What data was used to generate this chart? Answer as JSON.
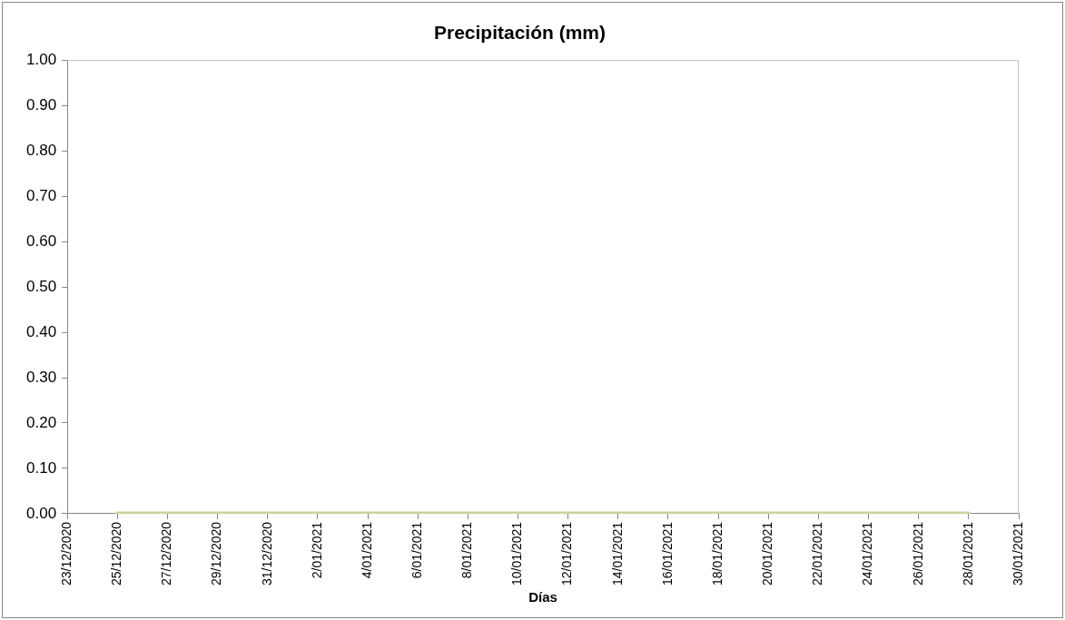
{
  "chart_data": {
    "type": "line",
    "title": "Precipitación (mm)",
    "xlabel": "Días",
    "legend": false,
    "marker": "none",
    "x": [
      "2020-12-25",
      "2020-12-26",
      "2020-12-27",
      "2020-12-28",
      "2020-12-29",
      "2020-12-30",
      "2020-12-31",
      "2021-01-01",
      "2021-01-02",
      "2021-01-03",
      "2021-01-04",
      "2021-01-05",
      "2021-01-06",
      "2021-01-07",
      "2021-01-08",
      "2021-01-09",
      "2021-01-10",
      "2021-01-11",
      "2021-01-12",
      "2021-01-13",
      "2021-01-14",
      "2021-01-15",
      "2021-01-16",
      "2021-01-17",
      "2021-01-18",
      "2021-01-19",
      "2021-01-20",
      "2021-01-21",
      "2021-01-22",
      "2021-01-23",
      "2021-01-24",
      "2021-01-25",
      "2021-01-26",
      "2021-01-27",
      "2021-01-28"
    ],
    "series": [
      {
        "color": "#c3d69b",
        "values": [
          0,
          0,
          0,
          0,
          0,
          0,
          0,
          0,
          0,
          0,
          0,
          0,
          0,
          0,
          0,
          0,
          0,
          0,
          0,
          0,
          0,
          0,
          0,
          0,
          0,
          0,
          0,
          0,
          0,
          0,
          0,
          0,
          0,
          0,
          0
        ]
      }
    ],
    "xlim": [
      "2020-12-23",
      "2021-01-30"
    ],
    "xticks": [
      {
        "value": "2020-12-23",
        "label": "23/12/2020"
      },
      {
        "value": "2020-12-25",
        "label": "25/12/2020"
      },
      {
        "value": "2020-12-27",
        "label": "27/12/2020"
      },
      {
        "value": "2020-12-29",
        "label": "29/12/2020"
      },
      {
        "value": "2020-12-31",
        "label": "31/12/2020"
      },
      {
        "value": "2021-01-02",
        "label": "2/01/2021"
      },
      {
        "value": "2021-01-04",
        "label": "4/01/2021"
      },
      {
        "value": "2021-01-06",
        "label": "6/01/2021"
      },
      {
        "value": "2021-01-08",
        "label": "8/01/2021"
      },
      {
        "value": "2021-01-10",
        "label": "10/01/2021"
      },
      {
        "value": "2021-01-12",
        "label": "12/01/2021"
      },
      {
        "value": "2021-01-14",
        "label": "14/01/2021"
      },
      {
        "value": "2021-01-16",
        "label": "16/01/2021"
      },
      {
        "value": "2021-01-18",
        "label": "18/01/2021"
      },
      {
        "value": "2021-01-20",
        "label": "20/01/2021"
      },
      {
        "value": "2021-01-22",
        "label": "22/01/2021"
      },
      {
        "value": "2021-01-24",
        "label": "24/01/2021"
      },
      {
        "value": "2021-01-26",
        "label": "26/01/2021"
      },
      {
        "value": "2021-01-28",
        "label": "28/01/2021"
      },
      {
        "value": "2021-01-30",
        "label": "30/01/2021"
      }
    ],
    "ylim": [
      0,
      1
    ],
    "yticks": [
      {
        "value": 0,
        "label": "0.00"
      },
      {
        "value": 0.1,
        "label": "0.10"
      },
      {
        "value": 0.2,
        "label": "0.20"
      },
      {
        "value": 0.3,
        "label": "0.30"
      },
      {
        "value": 0.4,
        "label": "0.40"
      },
      {
        "value": 0.5,
        "label": "0.50"
      },
      {
        "value": 0.6,
        "label": "0.60"
      },
      {
        "value": 0.7,
        "label": "0.70"
      },
      {
        "value": 0.8,
        "label": "0.80"
      },
      {
        "value": 0.9,
        "label": "0.90"
      },
      {
        "value": 1,
        "label": "1.00"
      }
    ]
  }
}
